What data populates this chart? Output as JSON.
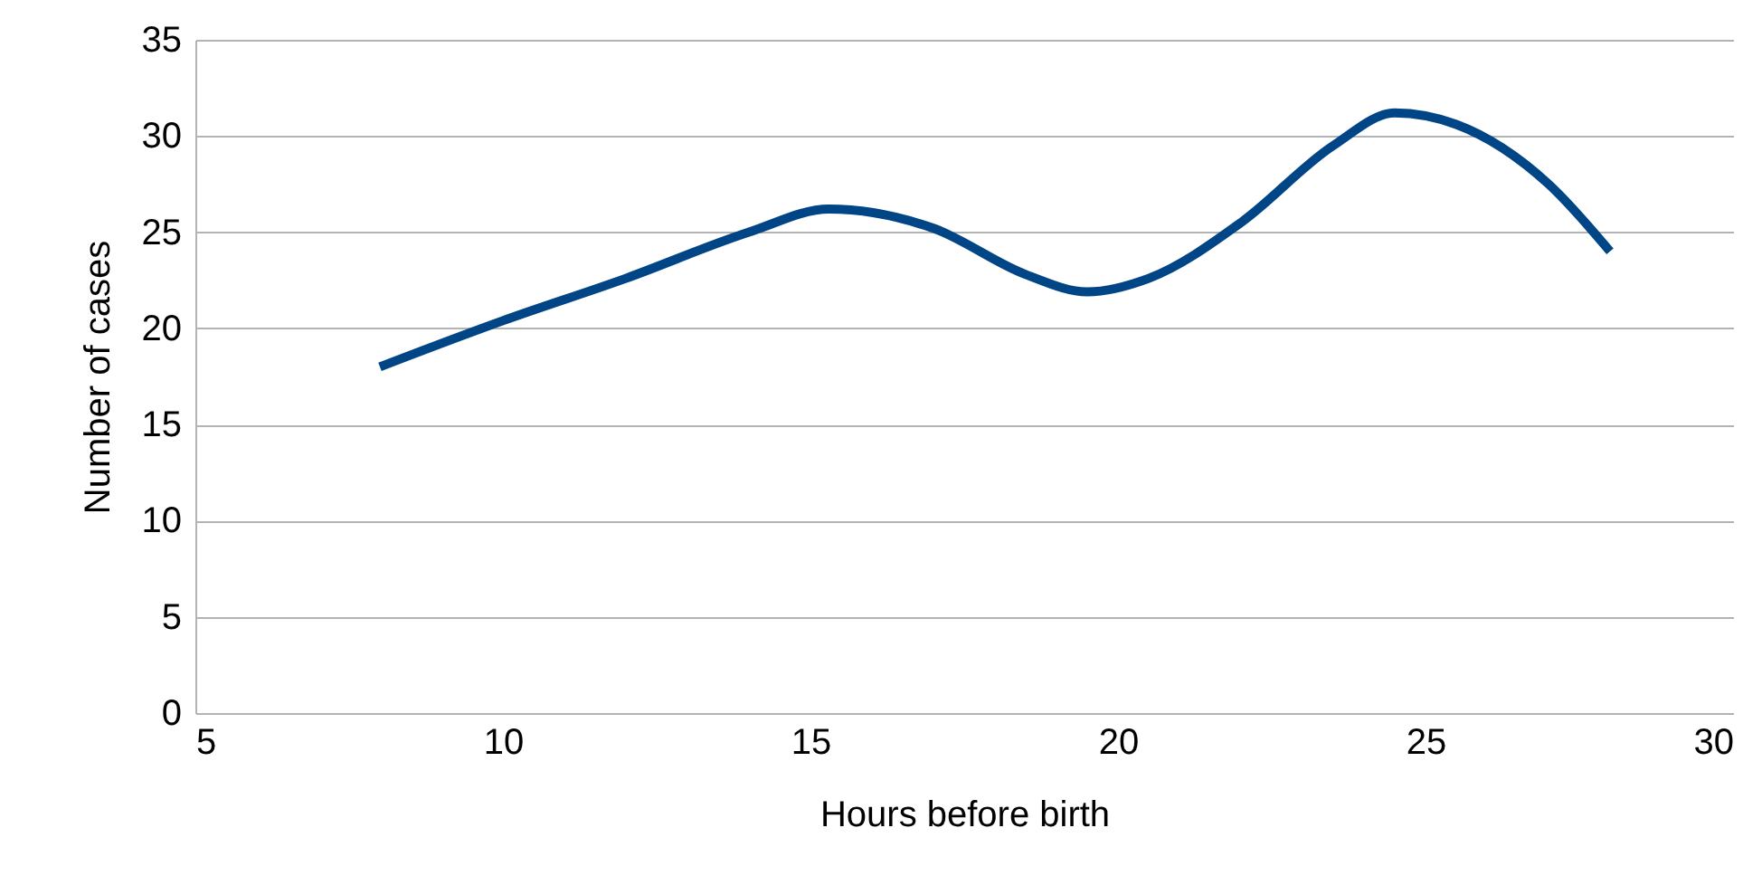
{
  "chart_data": {
    "type": "line",
    "xlabel": "Hours before birth",
    "ylabel": "Number of cases",
    "x": [
      8,
      10,
      12,
      14,
      15.3,
      17,
      18.5,
      19.5,
      20.5,
      22,
      23.5,
      24.5,
      25.5,
      27,
      28
    ],
    "series": [
      {
        "color": "#004586",
        "values": [
          18,
          20.4,
          22.6,
          25,
          26.2,
          25.2,
          22.8,
          21.9,
          22.6,
          25.5,
          29.5,
          31.2,
          30.6,
          27.5,
          24
        ]
      }
    ],
    "xlim": [
      5,
      30
    ],
    "xticks": [
      5,
      10,
      15,
      20,
      25,
      30
    ],
    "ylim": [
      0,
      35
    ],
    "yticks": [
      0,
      5,
      10,
      15,
      20,
      25,
      30,
      35
    ],
    "grid": "y",
    "marker": "none",
    "line_style": "solid"
  }
}
